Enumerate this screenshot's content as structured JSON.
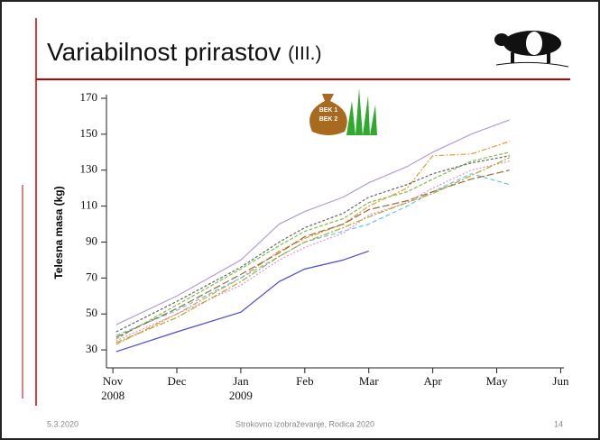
{
  "slide": {
    "title": "Variabilnost prirastov",
    "title_suffix": "(III.)",
    "bag_labels": [
      "BEK 1",
      "BEK 2"
    ],
    "footer": {
      "date": "5.3.2020",
      "center": "Strokovno izobraževanje, Rodica 2020",
      "page": "14"
    }
  },
  "chart_data": {
    "type": "line",
    "y_label": "Telesna masa (kg)",
    "x": [
      0.05,
      1,
      2,
      2.6,
      3,
      3.6,
      4,
      4.6,
      5,
      5.6,
      6.2
    ],
    "xlim": [
      -0.1,
      7.05
    ],
    "xticks": [
      {
        "value": 0,
        "label": "Nov 2008"
      },
      {
        "value": 1,
        "label": "Dec"
      },
      {
        "value": 2,
        "label": "Jan 2009"
      },
      {
        "value": 3,
        "label": "Feb"
      },
      {
        "value": 4,
        "label": "Mar"
      },
      {
        "value": 5,
        "label": "Apr"
      },
      {
        "value": 6,
        "label": "May"
      },
      {
        "value": 7,
        "label": "Jun"
      }
    ],
    "ylim": [
      20,
      172
    ],
    "yticks": [
      30,
      50,
      70,
      90,
      110,
      130,
      150,
      170
    ],
    "series": [
      {
        "color": "#b49be0",
        "values": [
          44,
          60,
          80,
          100,
          107,
          115,
          123,
          132,
          140,
          150,
          158
        ]
      },
      {
        "color": "#4b4bd8",
        "values": [
          29,
          40,
          51,
          68,
          75,
          80,
          85,
          null,
          null,
          null,
          null
        ]
      },
      {
        "color": "#7cc04a",
        "values": [
          36,
          55,
          75,
          88,
          96,
          103,
          112,
          118,
          125,
          135,
          140
        ]
      },
      {
        "color": "#e59a3a",
        "values": [
          33,
          50,
          70,
          85,
          92,
          100,
          110,
          120,
          138,
          139,
          146
        ]
      },
      {
        "color": "#5fc4e8",
        "values": [
          38,
          52,
          70,
          82,
          90,
          96,
          100,
          110,
          118,
          128,
          122
        ]
      },
      {
        "color": "#9a6b3a",
        "values": [
          37,
          53,
          72,
          84,
          93,
          100,
          108,
          113,
          118,
          125,
          130
        ]
      },
      {
        "color": "#666666",
        "values": [
          40,
          57,
          76,
          90,
          98,
          106,
          115,
          122,
          128,
          134,
          138
        ]
      },
      {
        "color": "#e48fd0",
        "values": [
          35,
          50,
          66,
          80,
          87,
          95,
          105,
          112,
          120,
          130,
          135
        ]
      },
      {
        "color": "#b0a830",
        "values": [
          34,
          48,
          68,
          82,
          90,
          98,
          104,
          112,
          117,
          127,
          137
        ]
      }
    ]
  }
}
